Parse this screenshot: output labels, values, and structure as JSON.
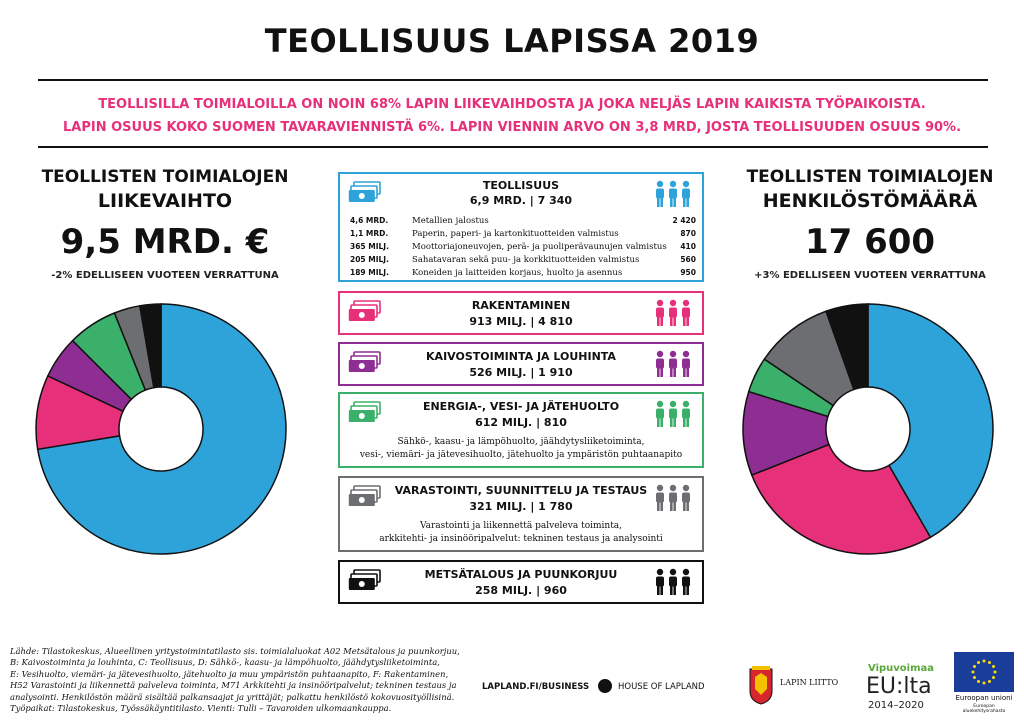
{
  "title": "TEOLLISUUS LAPISSA 2019",
  "intro": {
    "line1": "TEOLLISILLA TOIMIALOILLA ON NOIN 68% LAPIN LIIKEVAIHDOSTA JA JOKA NELJÄS LAPIN KAIKISTA TYÖPAIKOISTA.",
    "line2": "LAPIN OSUUS KOKO SUOMEN TAVARAVIENNISTÄ 6%. LAPIN VIENNIN ARVO ON 3,8 MRD, JOSTA TEOLLISUUDEN OSUUS 90%."
  },
  "left": {
    "head1": "TEOLLISTEN TOIMIALOJEN",
    "head2": "LIIKEVAIHTO",
    "big": "9,5 MRD. €",
    "note": "-2% EDELLISEEN VUOTEEN VERRATTUNA"
  },
  "right": {
    "head1": "TEOLLISTEN TOIMIALOJEN",
    "head2": "HENKILÖSTÖMÄÄRÄ",
    "big": "17 600",
    "note": "+3% EDELLISEEN VUOTEEN VERRATTUNA"
  },
  "colors": {
    "teollisuus": "#2ea3d9",
    "rakentaminen": "#e6307a",
    "kaivos": "#8e2e93",
    "energia": "#3bb06a",
    "varastointi": "#6d6e71",
    "metsa": "#111111"
  },
  "sectors": [
    {
      "key": "teollisuus",
      "title": "TEOLLISUUS",
      "value": "6,9 MRD.  |  7 340",
      "sub": [
        {
          "v": "4,6  MRD.",
          "l": "Metallien jalostus",
          "n": "2 420"
        },
        {
          "v": "1,1  MRD.",
          "l": "Paperin, paperi- ja kartonkituotteiden valmistus",
          "n": "870"
        },
        {
          "v": "365 MILJ.",
          "l": "Moottoriajoneuvojen, perä- ja puoliperävaunujen valmistus",
          "n": "410"
        },
        {
          "v": "205 MILJ.",
          "l": "Sahatavaran sekä puu- ja korkkituotteiden valmistus",
          "n": "560"
        },
        {
          "v": "189 MILJ.",
          "l": "Koneiden ja laitteiden korjaus, huolto ja asennus",
          "n": "950"
        }
      ]
    },
    {
      "key": "rakentaminen",
      "title": "RAKENTAMINEN",
      "value": "913 MILJ.  |  4 810"
    },
    {
      "key": "kaivos",
      "title": "KAIVOSTOIMINTA JA LOUHINTA",
      "value": "526 MILJ.  |  1 910"
    },
    {
      "key": "energia",
      "title": "ENERGIA-, VESI- JA JÄTEHUOLTO",
      "value": "612 MILJ.  |  810",
      "desc1": "Sähkö-, kaasu- ja lämpöhuolto, jäähdytysliiketoiminta,",
      "desc2": "vesi-, viemäri- ja jätevesihuolto, jätehuolto ja ympäristön puhtaanapito"
    },
    {
      "key": "varastointi",
      "title": "VARASTOINTI, SUUNNITTELU JA TESTAUS",
      "value": "321 MILJ.  |  1 780",
      "desc1": "Varastointi ja liikennettä palveleva toiminta,",
      "desc2": "arkkitehti- ja insinööripalvelut: tekninen testaus ja analysointi"
    },
    {
      "key": "metsa",
      "title": "METSÄTALOUS JA PUUNKORJUU",
      "value": "258 MILJ.  |  960"
    }
  ],
  "chart_data": [
    {
      "type": "pie",
      "title": "LIIKEVAIHTO",
      "categories": [
        "TEOLLISUUS",
        "RAKENTAMINEN",
        "KAIVOSTOIMINTA JA LOUHINTA",
        "ENERGIA-, VESI- JA JÄTEHUOLTO",
        "VARASTOINTI, SUUNNITTELU JA TESTAUS",
        "METSÄTALOUS JA PUUNKORJUU"
      ],
      "values": [
        6900,
        913,
        526,
        612,
        321,
        258
      ],
      "colors": [
        "#2ea3d9",
        "#e6307a",
        "#8e2e93",
        "#3bb06a",
        "#6d6e71",
        "#111111"
      ]
    },
    {
      "type": "pie",
      "title": "HENKILÖSTÖMÄÄRÄ",
      "categories": [
        "TEOLLISUUS",
        "RAKENTAMINEN",
        "KAIVOSTOIMINTA JA LOUHINTA",
        "ENERGIA-, VESI- JA JÄTEHUOLTO",
        "VARASTOINTI, SUUNNITTELU JA TESTAUS",
        "METSÄTALOUS JA PUUNKORJUU"
      ],
      "values": [
        7340,
        4810,
        1910,
        810,
        1780,
        960
      ],
      "colors": [
        "#2ea3d9",
        "#e6307a",
        "#8e2e93",
        "#3bb06a",
        "#6d6e71",
        "#111111"
      ]
    }
  ],
  "source": {
    "l1": "Lähde: Tilastokeskus, Alueellinen yritystoimintatilasto sis. toimialaluokat A02 Metsätalous ja puunkorjuu,",
    "l2": "B: Kaivostoiminta ja louhinta, C: Teollisuus, D: Sähkö-, kaasu- ja lämpöhuolto, jäähdytysliiketoiminta,",
    "l3": "E: Vesihuolto, viemäri- ja jätevesihuolto, jätehuolto ja muu ympäristön puhtaanapito, F: Rakentaminen,",
    "l4": "H52 Varastointi ja liikennettä palveleva toiminta, M71 Arkkitehti ja insinööripalvelut; tekninen testaus ja",
    "l5": "analysointi. Henkilöstön määrä sisältää palkansaajat ja yrittäjät; palkattu henkilöstö kokovuosityöllisinä.",
    "l6": "Työpaikat: Tilastokeskus, Työssäkäyntitilasto. Vienti: Tulli – Tavaroiden ulkomaankauppa."
  },
  "footer": {
    "link": "LAPLAND.FI/BUSINESS",
    "house": "HOUSE OF LAPLAND",
    "liitto": "LAPIN LIITTO",
    "vipu": "Vipuvoimaa",
    "eulta": "EU:lta",
    "years": "2014–2020",
    "eu1": "Euroopan unioni",
    "eu2": "Euroopan aluekehitysrahasto"
  }
}
